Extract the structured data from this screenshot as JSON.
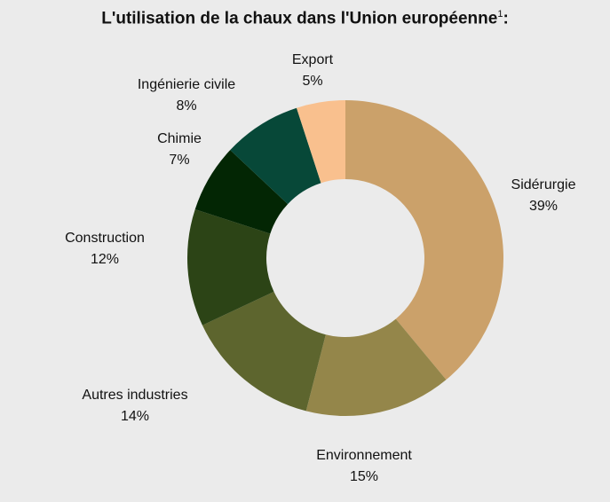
{
  "chart_data": {
    "type": "pie",
    "donut": true,
    "title": "L'utilisation de la chaux dans l'Union européenne",
    "title_superscript": "1",
    "title_suffix": ":",
    "start": "top",
    "direction": "clockwise",
    "slices": [
      {
        "label": "Sidérurgie",
        "value": 39,
        "display": "39%",
        "color": "#cba16a"
      },
      {
        "label": "Environnement",
        "value": 15,
        "display": "15%",
        "color": "#94864a"
      },
      {
        "label": "Autres industries",
        "value": 14,
        "display": "14%",
        "color": "#5d652e"
      },
      {
        "label": "Construction",
        "value": 12,
        "display": "12%",
        "color": "#2c4416"
      },
      {
        "label": "Chimie",
        "value": 7,
        "display": "7%",
        "color": "#032604"
      },
      {
        "label": "Ingénierie civile",
        "value": 8,
        "display": "8%",
        "color": "#074838"
      },
      {
        "label": "Export",
        "value": 5,
        "display": "5%",
        "color": "#f9c08e"
      }
    ]
  }
}
